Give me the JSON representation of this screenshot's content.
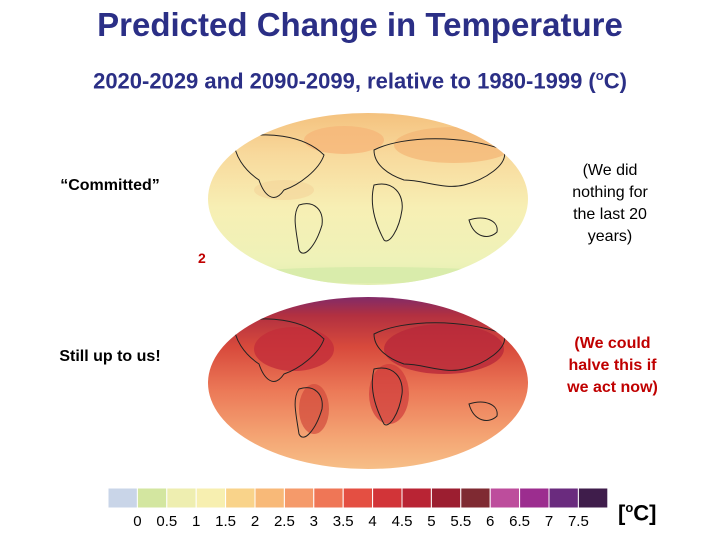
{
  "title": "Predicted Change in Temperature",
  "subtitle_main": "2020-2029 and 2090-2099, relative to 1980-1999 (",
  "subtitle_sup": "o",
  "subtitle_end": "C)",
  "top_map": {
    "left_label": "“Committed”",
    "right_note": [
      "(We did",
      "nothing for",
      "the last 20",
      "years)"
    ],
    "stray_char": "2"
  },
  "bottom_map": {
    "left_label": "Still up to us!",
    "right_note": [
      "(We could",
      "halve this if",
      "we act now)"
    ]
  },
  "colorbar": {
    "colors": [
      "#c9d5e8",
      "#d3e6a0",
      "#eeeeb0",
      "#f7efb0",
      "#f9d38a",
      "#f8b978",
      "#f59a6a",
      "#ef7656",
      "#e44f42",
      "#d23438",
      "#b92434",
      "#9c1e30",
      "#7f2a32",
      "#bd4d9c",
      "#9c2d8f",
      "#6a2b7e",
      "#3f1d4b"
    ],
    "ticks": [
      "0",
      "0.5",
      "1",
      "1.5",
      "2",
      "2.5",
      "3",
      "3.5",
      "4",
      "4.5",
      "5",
      "5.5",
      "6",
      "6.5",
      "7",
      "7.5"
    ]
  },
  "unit_pre": "[",
  "unit_sup": "o",
  "unit_post": "C]",
  "colors": {
    "title": "#2b2f86",
    "note_red": "#c00000"
  }
}
